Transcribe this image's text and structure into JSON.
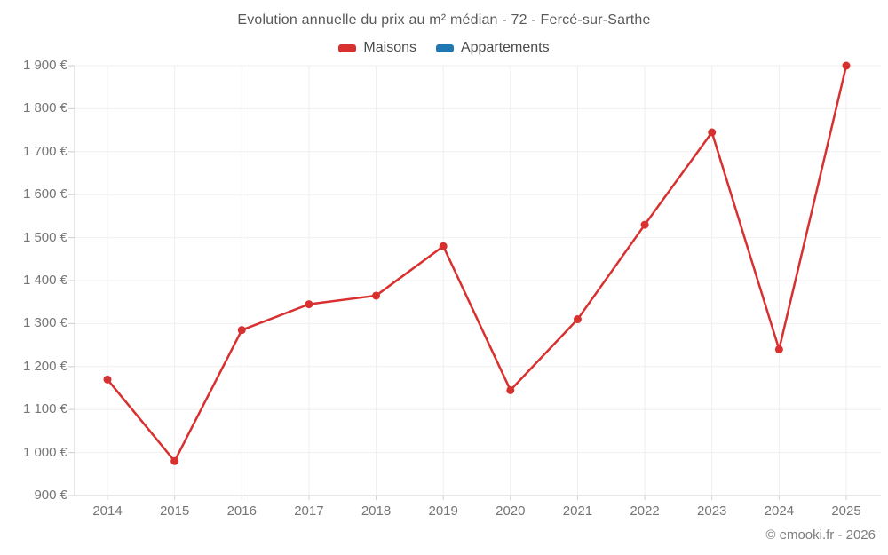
{
  "title": "Evolution annuelle du prix au m² médian - 72 - Fercé-sur-Sarthe",
  "legend": {
    "items": [
      {
        "label": "Maisons",
        "color": "#d7302f"
      },
      {
        "label": "Appartements",
        "color": "#1f77b4"
      }
    ]
  },
  "chart_data": {
    "type": "line",
    "title": "Evolution annuelle du prix au m² médian - 72 - Fercé-sur-Sarthe",
    "x": [
      2014,
      2015,
      2016,
      2017,
      2018,
      2019,
      2020,
      2021,
      2022,
      2023,
      2024,
      2025
    ],
    "x_tick_labels": [
      "2014",
      "2015",
      "2016",
      "2017",
      "2018",
      "2019",
      "2020",
      "2021",
      "2022",
      "2023",
      "2024",
      "2025"
    ],
    "series": [
      {
        "name": "Maisons",
        "color": "#d7302f",
        "values": [
          1170,
          980,
          1285,
          1345,
          1365,
          1480,
          1145,
          1310,
          1530,
          1745,
          1240,
          1900
        ]
      },
      {
        "name": "Appartements",
        "color": "#1f77b4",
        "values": []
      }
    ],
    "ylim": [
      900,
      1900
    ],
    "ytick_step": 100,
    "y_tick_labels": [
      "900 €",
      "1 000 €",
      "1 100 €",
      "1 200 €",
      "1 300 €",
      "1 400 €",
      "1 500 €",
      "1 600 €",
      "1 700 €",
      "1 800 €",
      "1 900 €"
    ],
    "ylabel": "",
    "xlabel": "",
    "grid": true,
    "legend_position": "top",
    "grid_color": "#efefef",
    "axis_color": "#cfcfcf"
  },
  "footer": {
    "copyright": "© emooki.fr - 2026"
  }
}
